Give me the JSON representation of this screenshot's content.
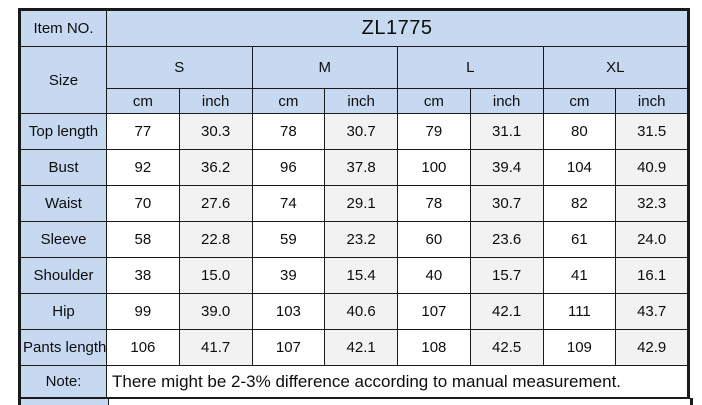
{
  "colors": {
    "header_fill": "#c6d9f1",
    "alt_column_fill": "#f2f2f2",
    "border": "#1a1a1a",
    "background": "#ffffff",
    "text": "#0d0d0d"
  },
  "table": {
    "item_no_label": "Item NO.",
    "item_no_value": "ZL1775",
    "size_label": "Size",
    "sizes": [
      "S",
      "M",
      "L",
      "XL"
    ],
    "units": [
      "cm",
      "inch",
      "cm",
      "inch",
      "cm",
      "inch",
      "cm",
      "inch"
    ],
    "rows": [
      {
        "label": "Top length",
        "values": [
          "77",
          "30.3",
          "78",
          "30.7",
          "79",
          "31.1",
          "80",
          "31.5"
        ]
      },
      {
        "label": "Bust",
        "values": [
          "92",
          "36.2",
          "96",
          "37.8",
          "100",
          "39.4",
          "104",
          "40.9"
        ]
      },
      {
        "label": "Waist",
        "values": [
          "70",
          "27.6",
          "74",
          "29.1",
          "78",
          "30.7",
          "82",
          "32.3"
        ]
      },
      {
        "label": "Sleeve",
        "values": [
          "58",
          "22.8",
          "59",
          "23.2",
          "60",
          "23.6",
          "61",
          "24.0"
        ]
      },
      {
        "label": "Shoulder",
        "values": [
          "38",
          "15.0",
          "39",
          "15.4",
          "40",
          "15.7",
          "41",
          "16.1"
        ]
      },
      {
        "label": "Hip",
        "values": [
          "99",
          "39.0",
          "103",
          "40.6",
          "107",
          "42.1",
          "111",
          "43.7"
        ]
      },
      {
        "label": "Pants length",
        "values": [
          "106",
          "41.7",
          "107",
          "42.1",
          "108",
          "42.5",
          "109",
          "42.9"
        ]
      }
    ],
    "note_label": "Note:",
    "note_text": "There might be 2-3% difference according to manual measurement."
  },
  "chart_data": {
    "type": "table",
    "title": "ZL1775",
    "columns": [
      "Size",
      "S cm",
      "S inch",
      "M cm",
      "M inch",
      "L cm",
      "L inch",
      "XL cm",
      "XL inch"
    ],
    "rows": [
      [
        "Top length",
        77,
        30.3,
        78,
        30.7,
        79,
        31.1,
        80,
        31.5
      ],
      [
        "Bust",
        92,
        36.2,
        96,
        37.8,
        100,
        39.4,
        104,
        40.9
      ],
      [
        "Waist",
        70,
        27.6,
        74,
        29.1,
        78,
        30.7,
        82,
        32.3
      ],
      [
        "Sleeve",
        58,
        22.8,
        59,
        23.2,
        60,
        23.6,
        61,
        24.0
      ],
      [
        "Shoulder",
        38,
        15.0,
        39,
        15.4,
        40,
        15.7,
        41,
        16.1
      ],
      [
        "Hip",
        99,
        39.0,
        103,
        40.6,
        107,
        42.1,
        111,
        43.7
      ],
      [
        "Pants length",
        106,
        41.7,
        107,
        42.1,
        108,
        42.5,
        109,
        42.9
      ]
    ],
    "note": "There might be 2-3% difference according to manual measurement."
  }
}
